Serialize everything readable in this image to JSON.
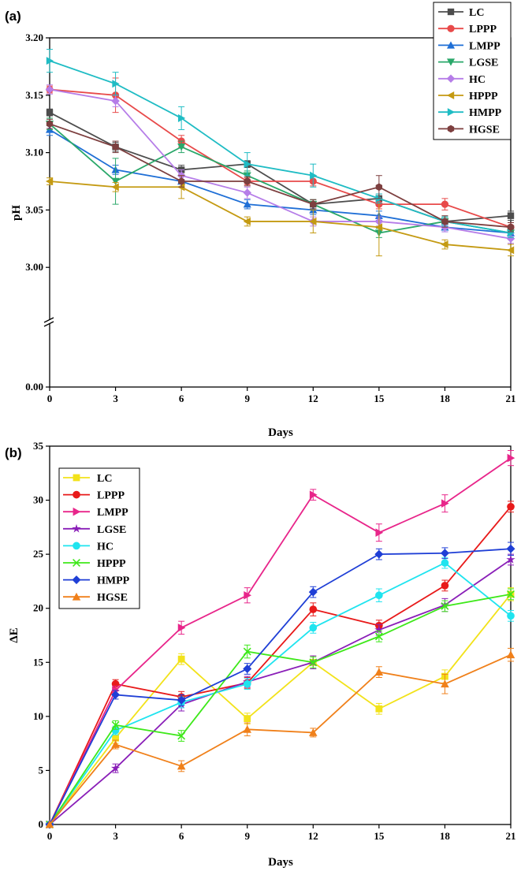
{
  "chart_data": [
    {
      "panel": "(a)",
      "type": "line",
      "xlabel": "Days",
      "ylabel": "pH",
      "x": [
        0,
        3,
        6,
        9,
        12,
        15,
        18,
        21
      ],
      "xticks": [
        "0",
        "3",
        "6",
        "9",
        "12",
        "15",
        "18",
        "21"
      ],
      "yticks": [
        "0.00",
        "3.00",
        "3.05",
        "3.10",
        "3.15",
        "3.20"
      ],
      "ylim_upper": [
        2.95,
        3.2
      ],
      "axis_break": true,
      "legend_position": "top-right",
      "series": [
        {
          "name": "LC",
          "marker": "square",
          "color": "#4d4d4d",
          "values": [
            3.135,
            3.105,
            3.085,
            3.09,
            3.055,
            3.06,
            3.04,
            3.045
          ],
          "err": [
            0.003,
            0.004,
            0.004,
            0.003,
            0.004,
            0.004,
            0.004,
            0.004
          ]
        },
        {
          "name": "LPPP",
          "marker": "circle",
          "color": "#e84a4a",
          "values": [
            3.155,
            3.15,
            3.11,
            3.075,
            3.075,
            3.055,
            3.055,
            3.035
          ],
          "err": [
            0.003,
            0.015,
            0.005,
            0.003,
            0.004,
            0.004,
            0.005,
            0.004
          ]
        },
        {
          "name": "LMPP",
          "marker": "triangle-up",
          "color": "#1f6fd6",
          "values": [
            3.12,
            3.085,
            3.075,
            3.055,
            3.05,
            3.045,
            3.035,
            3.03
          ],
          "err": [
            0.005,
            0.004,
            0.005,
            0.004,
            0.004,
            0.004,
            0.004,
            0.004
          ]
        },
        {
          "name": "LGSE",
          "marker": "triangle-down",
          "color": "#2aa86a",
          "values": [
            3.125,
            3.075,
            3.105,
            3.08,
            3.055,
            3.03,
            3.04,
            3.03
          ],
          "err": [
            0.005,
            0.02,
            0.005,
            0.004,
            0.004,
            0.004,
            0.004,
            0.004
          ]
        },
        {
          "name": "HC",
          "marker": "diamond",
          "color": "#b67de8",
          "values": [
            3.155,
            3.145,
            3.08,
            3.065,
            3.04,
            3.04,
            3.035,
            3.025
          ],
          "err": [
            0.004,
            0.005,
            0.005,
            0.005,
            0.004,
            0.004,
            0.004,
            0.004
          ]
        },
        {
          "name": "HPPP",
          "marker": "triangle-left",
          "color": "#c49a12",
          "values": [
            3.075,
            3.07,
            3.07,
            3.04,
            3.04,
            3.035,
            3.02,
            3.015
          ],
          "err": [
            0.003,
            0.004,
            0.01,
            0.004,
            0.01,
            0.025,
            0.004,
            0.005
          ]
        },
        {
          "name": "HMPP",
          "marker": "triangle-right",
          "color": "#1fbcc4",
          "values": [
            3.18,
            3.16,
            3.13,
            3.09,
            3.08,
            3.06,
            3.04,
            3.03
          ],
          "err": [
            0.01,
            0.01,
            0.01,
            0.01,
            0.01,
            0.004,
            0.004,
            0.004
          ]
        },
        {
          "name": "HGSE",
          "marker": "hexagon",
          "color": "#7d3f3f",
          "values": [
            3.125,
            3.105,
            3.075,
            3.075,
            3.055,
            3.07,
            3.04,
            3.035
          ],
          "err": [
            0.004,
            0.005,
            0.005,
            0.004,
            0.004,
            0.01,
            0.005,
            0.004
          ]
        }
      ]
    },
    {
      "panel": "(b)",
      "type": "line",
      "xlabel": "Days",
      "ylabel": "ΔE",
      "x": [
        0,
        3,
        6,
        9,
        12,
        15,
        18,
        21
      ],
      "xticks": [
        "0",
        "3",
        "6",
        "9",
        "12",
        "15",
        "18",
        "21"
      ],
      "yticks": [
        "0",
        "5",
        "10",
        "15",
        "20",
        "25",
        "30",
        "35"
      ],
      "ylim": [
        0,
        35
      ],
      "legend_position": "top-left",
      "series": [
        {
          "name": "LC",
          "marker": "square",
          "color": "#f2e21a",
          "values": [
            0,
            8.0,
            15.3,
            9.8,
            15.0,
            10.7,
            13.7,
            21.3
          ],
          "err": [
            0,
            0.5,
            0.5,
            0.5,
            0.6,
            0.5,
            0.6,
            0.6
          ]
        },
        {
          "name": "LPPP",
          "marker": "circle",
          "color": "#e81a1a",
          "values": [
            0,
            13.0,
            11.8,
            13.1,
            19.9,
            18.4,
            22.1,
            29.4
          ],
          "err": [
            0,
            0.4,
            0.5,
            0.5,
            0.6,
            0.5,
            0.5,
            0.5
          ]
        },
        {
          "name": "LMPP",
          "marker": "triangle-right",
          "color": "#e8258a",
          "values": [
            0,
            12.4,
            18.2,
            21.2,
            30.5,
            27.0,
            29.7,
            33.9
          ],
          "err": [
            0,
            0.4,
            0.6,
            0.7,
            0.5,
            0.8,
            0.8,
            0.7
          ]
        },
        {
          "name": "LGSE",
          "marker": "star",
          "color": "#8a1fb8",
          "values": [
            0,
            5.2,
            11.1,
            13.2,
            15.0,
            18.0,
            20.3,
            24.5
          ],
          "err": [
            0,
            0.4,
            0.6,
            0.5,
            0.6,
            0.5,
            0.6,
            0.5
          ]
        },
        {
          "name": "HC",
          "marker": "circle",
          "color": "#1fe4ef",
          "values": [
            0,
            8.7,
            11.3,
            13.0,
            18.2,
            21.2,
            24.2,
            19.3
          ],
          "err": [
            0,
            0.4,
            0.5,
            0.5,
            0.5,
            0.6,
            0.5,
            0.5
          ]
        },
        {
          "name": "HPPP",
          "marker": "x",
          "color": "#3ee81a",
          "values": [
            0,
            9.2,
            8.2,
            16.0,
            15.0,
            17.4,
            20.2,
            21.3
          ],
          "err": [
            0,
            0.4,
            0.5,
            0.6,
            0.5,
            0.5,
            0.5,
            0.5
          ]
        },
        {
          "name": "HMPP",
          "marker": "diamond",
          "color": "#1f3fd6",
          "values": [
            0,
            12.0,
            11.5,
            14.4,
            21.5,
            25.0,
            25.1,
            25.5
          ],
          "err": [
            0,
            0.4,
            0.5,
            0.5,
            0.5,
            0.5,
            0.5,
            0.6
          ]
        },
        {
          "name": "HGSE",
          "marker": "triangle-up",
          "color": "#f0801a",
          "values": [
            0,
            7.4,
            5.4,
            8.8,
            8.5,
            14.1,
            13.0,
            15.7
          ],
          "err": [
            0,
            0.4,
            0.5,
            0.6,
            0.4,
            0.5,
            0.9,
            0.6
          ]
        }
      ]
    }
  ]
}
